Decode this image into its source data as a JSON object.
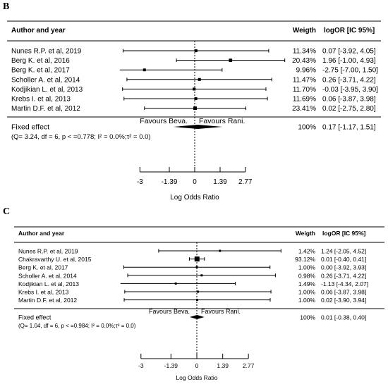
{
  "panels": [
    {
      "letter": "B",
      "header": {
        "author_col": "Author and year",
        "weight_col": "Weigth",
        "ci_col": "logOR [IC 95%]"
      },
      "fixed_effect_label": "Fixed effect",
      "heterogeneity": "(Q= 3.24, df = 6, p < =0.778; I² = 0.0%;τ² = 0.0)",
      "favours_left": "Favours Beva.",
      "favours_right": "Favours Rani.",
      "x_axis_label": "Log Odds Ratio"
    },
    {
      "letter": "C",
      "header": {
        "author_col": "Author and year",
        "weight_col": "Weigth",
        "ci_col": "logOR [IC 95%]"
      },
      "fixed_effect_label": "Fixed effect",
      "heterogeneity": "(Q= 1.04, df = 6, p < =0.984; I² = 0.0%;τ² = 0.0)",
      "favours_left": "Favours Beva.",
      "favours_right": "Favours Rani.",
      "x_axis_label": "Log Odds Ratio"
    }
  ],
  "chart_data": [
    {
      "type": "forest",
      "xlabel": "Log Odds Ratio",
      "ticks": [
        -3,
        -1.39,
        0,
        1.39,
        2.77
      ],
      "tick_labels": [
        "-3",
        "-1.39",
        "0",
        "1.39",
        "2.77"
      ],
      "xlim": [
        -4.1,
        5.1
      ],
      "studies": [
        {
          "name": "Nunes R.P. et al, 2019",
          "weight": "11.34%",
          "ci_text": "0.07 [-3.92, 4.05]",
          "est": 0.07,
          "lo": -3.92,
          "hi": 4.05
        },
        {
          "name": "Berg K. et al, 2016",
          "weight": "20.43%",
          "ci_text": "1.96 [-1.00, 4.93]",
          "est": 1.96,
          "lo": -1.0,
          "hi": 4.93
        },
        {
          "name": "Berg K. et al, 2017",
          "weight": "9.96%",
          "ci_text": "-2.75 [-7.00, 1.50]",
          "est": -2.75,
          "lo": -7.0,
          "hi": 1.5
        },
        {
          "name": "Scholler A. et al, 2014",
          "weight": "11.47%",
          "ci_text": "0.26 [-3.71, 4.22]",
          "est": 0.26,
          "lo": -3.71,
          "hi": 4.22
        },
        {
          "name": "Kodjikian L. et al, 2013",
          "weight": "11.70%",
          "ci_text": "-0.03 [-3.95, 3.90]",
          "est": -0.03,
          "lo": -3.95,
          "hi": 3.9
        },
        {
          "name": "Krebs I. et al, 2013",
          "weight": "11.69%",
          "ci_text": "0.06 [-3.87, 3.98]",
          "est": 0.06,
          "lo": -3.87,
          "hi": 3.98
        },
        {
          "name": "Martin D.F. et al, 2012",
          "weight": "23.41%",
          "ci_text": "0.02 [-2.75, 2.80]",
          "est": 0.02,
          "lo": -2.75,
          "hi": 2.8
        }
      ],
      "pooled": {
        "weight": "100%",
        "ci_text": "0.17 [-1.17, 1.51]",
        "est": 0.17,
        "lo": -1.17,
        "hi": 1.51
      }
    },
    {
      "type": "forest",
      "xlabel": "Log Odds Ratio",
      "ticks": [
        -3,
        -1.39,
        0,
        1.39,
        2.77
      ],
      "tick_labels": [
        "-3",
        "-1.39",
        "0",
        "1.39",
        "2.77"
      ],
      "xlim": [
        -4.1,
        5.1
      ],
      "studies": [
        {
          "name": "Nunes R.P. et al, 2019",
          "weight": "1.42%",
          "ci_text": "1.24 [-2.05, 4.52]",
          "est": 1.24,
          "lo": -2.05,
          "hi": 4.52
        },
        {
          "name": "Chakravarthy U. et al, 2015",
          "weight": "93.12%",
          "ci_text": "0.01 [-0.40, 0.41]",
          "est": 0.01,
          "lo": -0.4,
          "hi": 0.41
        },
        {
          "name": "Berg K. et al, 2017",
          "weight": "1.00%",
          "ci_text": "0.00 [-3.92, 3.93]",
          "est": 0.0,
          "lo": -3.92,
          "hi": 3.93
        },
        {
          "name": "Scholler A. et al, 2014",
          "weight": "0.98%",
          "ci_text": "0.26 [-3.71, 4.22]",
          "est": 0.26,
          "lo": -3.71,
          "hi": 4.22
        },
        {
          "name": "Kodjikian L. et al, 2013",
          "weight": "1.49%",
          "ci_text": "-1.13 [-4.34, 2.07]",
          "est": -1.13,
          "lo": -4.34,
          "hi": 2.07
        },
        {
          "name": "Krebs I. et al, 2013",
          "weight": "1.00%",
          "ci_text": "0.06 [-3.87, 3.98]",
          "est": 0.06,
          "lo": -3.87,
          "hi": 3.98
        },
        {
          "name": "Martin D.F. et al, 2012",
          "weight": "1.00%",
          "ci_text": "0.02 [-3.90, 3.94]",
          "est": 0.02,
          "lo": -3.9,
          "hi": 3.94
        }
      ],
      "pooled": {
        "weight": "100%",
        "ci_text": "0.01 [-0.38, 0.40]",
        "est": 0.01,
        "lo": -0.38,
        "hi": 0.4
      }
    }
  ]
}
